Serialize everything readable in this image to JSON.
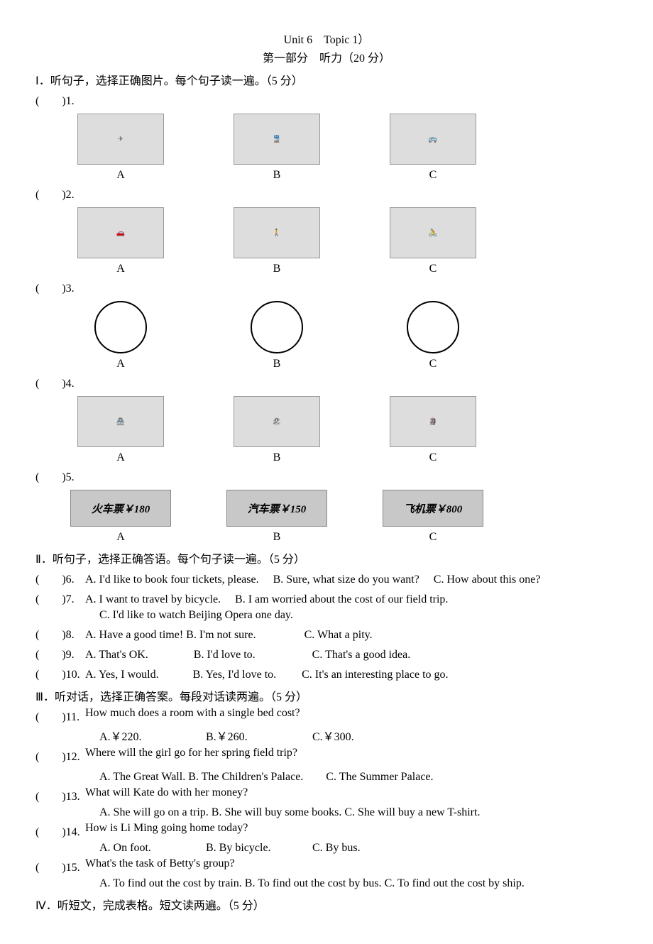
{
  "header": {
    "title": "Unit 6　Topic 1）",
    "subtitle": "第一部分　听力（20 分）"
  },
  "section1": {
    "label": "Ⅰ．听句子，选择正确图片。每个句子读一遍。（5 分）",
    "questions": [
      {
        "num": "(　　)1.",
        "imgs": [
          "airplane",
          "train",
          "bus"
        ],
        "labels": [
          "A",
          "B",
          "C"
        ]
      },
      {
        "num": "(　　)2.",
        "imgs": [
          "car",
          "boy-walking",
          "boy-bicycle"
        ],
        "labels": [
          "A",
          "B",
          "C"
        ]
      },
      {
        "num": "(　　)3.",
        "type": "clock",
        "labels": [
          "A",
          "B",
          "C"
        ]
      },
      {
        "num": "(　　)4.",
        "imgs": [
          "great-wall",
          "beach",
          "stone-monument"
        ],
        "labels": [
          "A",
          "B",
          "C"
        ]
      },
      {
        "num": "(　　)5.",
        "type": "ticket",
        "tickets": [
          "火车票￥180",
          "汽车票￥150",
          "飞机票￥800"
        ],
        "labels": [
          "A",
          "B",
          "C"
        ]
      }
    ]
  },
  "section2": {
    "label": "Ⅱ．听句子，选择正确答语。每个句子读一遍。（5 分）",
    "questions": [
      {
        "num": "(　　)6.",
        "text": "A. I'd like to book four tickets, please.　 B. Sure, what size do you want?　 C. How about this one?"
      },
      {
        "num": "(　　)7.",
        "text": "A. I want to travel by bicycle.　 B. I am worried about the cost of our field trip.",
        "extra": "C. I'd like to watch Beijing Opera one day."
      },
      {
        "num": "(　　)8.",
        "text": "A. Have a good time!  B. I'm not sure.　　　　 C. What a pity."
      },
      {
        "num": "(　　)9.",
        "text": "A. That's OK.　　　　B. I'd love to.　　　　　C. That's a good idea."
      },
      {
        "num": "(　　)10.",
        "text": "A. Yes, I would.　　　B. Yes, I'd love to.　　 C. It's an interesting place to go."
      }
    ]
  },
  "section3": {
    "label": "Ⅲ．听对话，选择正确答案。每段对话读两遍。（5 分）",
    "questions": [
      {
        "num": "(　　)11.",
        "q": "How much does a room with a single bed cost?",
        "opts": [
          "A.￥220.",
          "B.￥260.",
          "C.￥300."
        ]
      },
      {
        "num": "(　　)12.",
        "q": "Where will the girl go for her spring field trip?",
        "optsline": "A. The Great Wall. B. The Children's Palace.　　C. The Summer Palace."
      },
      {
        "num": "(　　)13.",
        "q": "What will Kate do with her money?",
        "optsline": "A. She will go on a trip. B. She will buy some books. C. She will buy a new T-shirt."
      },
      {
        "num": "(　　)14.",
        "q": "How is Li Ming going home today?",
        "opts": [
          "A. On foot.",
          "B. By bicycle.",
          "C. By bus."
        ]
      },
      {
        "num": "(　　)15.",
        "q": "What's the task of Betty's group?",
        "optsline": "A. To find out the cost by train. B. To find out the cost by bus. C. To find out the cost by ship."
      }
    ]
  },
  "section4": {
    "label": "Ⅳ．听短文，完成表格。短文读两遍。（5 分）"
  }
}
